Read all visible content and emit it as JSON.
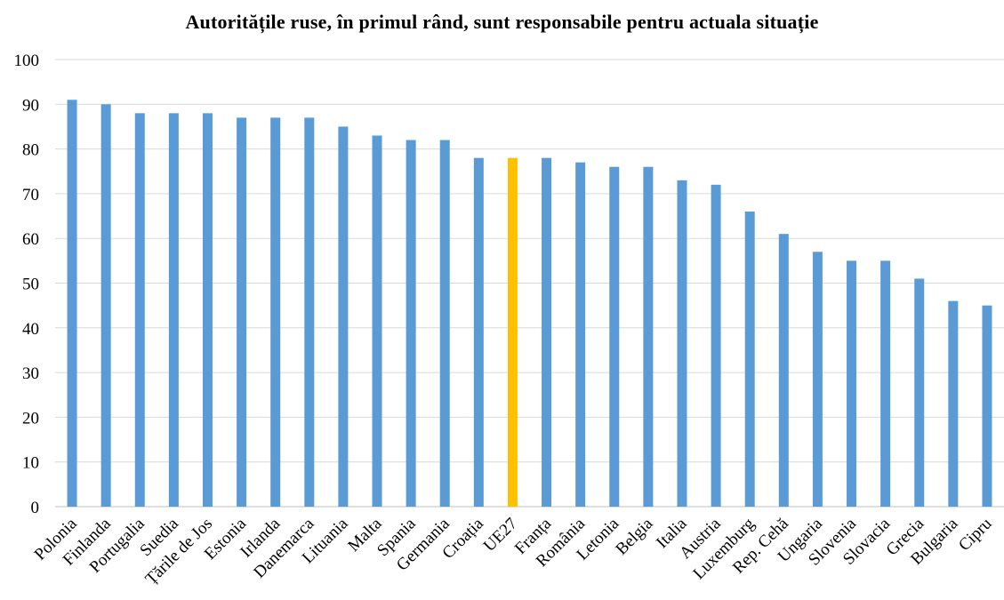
{
  "chart_data": {
    "type": "bar",
    "title": "Autoritățile ruse, în primul rând, sunt responsabile pentru actuala situație",
    "xlabel": "",
    "ylabel": "",
    "ylim": [
      0,
      100
    ],
    "yticks": [
      0,
      10,
      20,
      30,
      40,
      50,
      60,
      70,
      80,
      90,
      100
    ],
    "grid": true,
    "legend": "none",
    "colors": {
      "default": "#5B9BD5",
      "highlight": "#FFC000",
      "grid": "#D9D9D9",
      "axis": "#BFBFBF"
    },
    "highlight_category": "UE27",
    "categories": [
      "Polonia",
      "Finlanda",
      "Portugalia",
      "Suedia",
      "Țările de Jos",
      "Estonia",
      "Irlanda",
      "Danemarca",
      "Lituania",
      "Malta",
      "Spania",
      "Germania",
      "Croația",
      "UE27",
      "Franța",
      "România",
      "Letonia",
      "Belgia",
      "Italia",
      "Austria",
      "Luxemburg",
      "Rep. Cehă",
      "Ungaria",
      "Slovenia",
      "Slovacia",
      "Grecia",
      "Bulgaria",
      "Cipru"
    ],
    "values": [
      91,
      90,
      88,
      88,
      88,
      87,
      87,
      87,
      85,
      83,
      82,
      82,
      78,
      78,
      78,
      77,
      76,
      76,
      73,
      72,
      66,
      61,
      57,
      55,
      55,
      51,
      46,
      45
    ]
  }
}
